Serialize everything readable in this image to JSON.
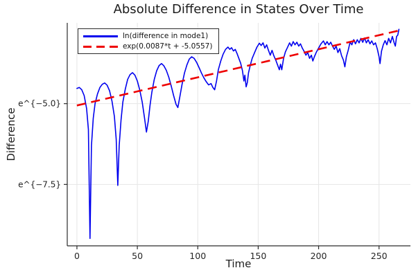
{
  "title": "Absolute Difference in States Over Time",
  "xlabel": "Time",
  "ylabel": "Difference",
  "legend": [
    {
      "label": "ln(difference in mode1)",
      "color": "#0000ee",
      "style": "solid"
    },
    {
      "label": "exp(0.0087*t + -5.0557)",
      "color": "#ee0000",
      "style": "dashed"
    }
  ],
  "colors": {
    "series_blue": "#0000ee",
    "series_red": "#ee0000",
    "grid": "#e6e6e6",
    "axis": "#2b2b2b",
    "tick_text": "#252525",
    "background": "#ffffff"
  },
  "axes": {
    "xlim": [
      -8,
      276
    ],
    "ylim_ln": [
      -9.4,
      -2.5
    ],
    "xticks": [
      0,
      50,
      100,
      150,
      200,
      250
    ],
    "yticks": [
      {
        "value": -5.0,
        "label": "e^{−5.0}"
      },
      {
        "value": -7.5,
        "label": "e^{−7.5}"
      }
    ],
    "grid": true,
    "frame": "left-bottom spines only"
  },
  "chart_data": {
    "type": "line",
    "title": "Absolute Difference in States Over Time",
    "xlabel": "Time",
    "ylabel": "Difference",
    "y_units": "natural-log scale; tick labels rendered as e^{value}",
    "xlim": [
      -8,
      276
    ],
    "ylim": [
      -9.4,
      -2.5
    ],
    "legend_position": "top-left",
    "series": [
      {
        "name": "ln(difference in mode1)",
        "color": "#0000ee",
        "style": "solid",
        "points": [
          [
            0,
            -4.53
          ],
          [
            2,
            -4.5
          ],
          [
            4,
            -4.57
          ],
          [
            6,
            -4.75
          ],
          [
            8,
            -5.15
          ],
          [
            9.5,
            -5.8
          ],
          [
            10.8,
            -9.17
          ],
          [
            12,
            -6.3
          ],
          [
            13.5,
            -5.45
          ],
          [
            15,
            -5.0
          ],
          [
            17,
            -4.7
          ],
          [
            19,
            -4.5
          ],
          [
            21,
            -4.4
          ],
          [
            23,
            -4.36
          ],
          [
            25,
            -4.43
          ],
          [
            27,
            -4.6
          ],
          [
            29,
            -4.92
          ],
          [
            31,
            -5.4
          ],
          [
            32.5,
            -6.1
          ],
          [
            33.8,
            -7.53
          ],
          [
            35,
            -6.3
          ],
          [
            36.5,
            -5.5
          ],
          [
            38,
            -4.95
          ],
          [
            40,
            -4.55
          ],
          [
            42,
            -4.25
          ],
          [
            44,
            -4.1
          ],
          [
            46,
            -4.04
          ],
          [
            48,
            -4.12
          ],
          [
            50,
            -4.3
          ],
          [
            52,
            -4.58
          ],
          [
            54,
            -4.95
          ],
          [
            56,
            -5.45
          ],
          [
            57.5,
            -5.88
          ],
          [
            59,
            -5.55
          ],
          [
            60.5,
            -5.05
          ],
          [
            62,
            -4.65
          ],
          [
            64,
            -4.25
          ],
          [
            66,
            -3.98
          ],
          [
            68,
            -3.82
          ],
          [
            70,
            -3.76
          ],
          [
            72,
            -3.83
          ],
          [
            74,
            -3.97
          ],
          [
            76,
            -4.18
          ],
          [
            78,
            -4.45
          ],
          [
            80,
            -4.75
          ],
          [
            82,
            -5.02
          ],
          [
            83.5,
            -5.12
          ],
          [
            85,
            -4.82
          ],
          [
            87,
            -4.4
          ],
          [
            89,
            -4.05
          ],
          [
            91,
            -3.8
          ],
          [
            93,
            -3.62
          ],
          [
            95,
            -3.55
          ],
          [
            97,
            -3.6
          ],
          [
            99,
            -3.72
          ],
          [
            101,
            -3.88
          ],
          [
            103,
            -4.05
          ],
          [
            105,
            -4.2
          ],
          [
            107,
            -4.32
          ],
          [
            109,
            -4.42
          ],
          [
            111,
            -4.38
          ],
          [
            112.5,
            -4.5
          ],
          [
            114,
            -4.57
          ],
          [
            115.5,
            -4.3
          ],
          [
            117,
            -3.95
          ],
          [
            119,
            -3.68
          ],
          [
            121,
            -3.47
          ],
          [
            123,
            -3.32
          ],
          [
            125,
            -3.25
          ],
          [
            126.5,
            -3.32
          ],
          [
            128,
            -3.27
          ],
          [
            129.5,
            -3.37
          ],
          [
            131,
            -3.32
          ],
          [
            132.5,
            -3.45
          ],
          [
            134,
            -3.6
          ],
          [
            135.5,
            -3.75
          ],
          [
            137,
            -3.98
          ],
          [
            138.2,
            -4.3
          ],
          [
            139,
            -4.12
          ],
          [
            140,
            -4.48
          ],
          [
            141,
            -4.35
          ],
          [
            142,
            -4.05
          ],
          [
            143.5,
            -3.8
          ],
          [
            145,
            -3.6
          ],
          [
            147,
            -3.42
          ],
          [
            149,
            -3.25
          ],
          [
            151,
            -3.13
          ],
          [
            152.5,
            -3.2
          ],
          [
            154,
            -3.12
          ],
          [
            155.5,
            -3.28
          ],
          [
            157,
            -3.18
          ],
          [
            158.5,
            -3.35
          ],
          [
            160,
            -3.5
          ],
          [
            161.5,
            -3.35
          ],
          [
            163,
            -3.52
          ],
          [
            164.5,
            -3.65
          ],
          [
            166,
            -3.8
          ],
          [
            167.5,
            -3.95
          ],
          [
            168.5,
            -3.78
          ],
          [
            169.5,
            -3.95
          ],
          [
            171,
            -3.6
          ],
          [
            172.5,
            -3.4
          ],
          [
            174,
            -3.28
          ],
          [
            176,
            -3.12
          ],
          [
            177.5,
            -3.22
          ],
          [
            179,
            -3.08
          ],
          [
            180.5,
            -3.18
          ],
          [
            182,
            -3.1
          ],
          [
            183.5,
            -3.22
          ],
          [
            185,
            -3.15
          ],
          [
            186.5,
            -3.28
          ],
          [
            188,
            -3.38
          ],
          [
            189.5,
            -3.5
          ],
          [
            191,
            -3.42
          ],
          [
            192.5,
            -3.6
          ],
          [
            194,
            -3.5
          ],
          [
            195.2,
            -3.68
          ],
          [
            196.5,
            -3.55
          ],
          [
            198,
            -3.42
          ],
          [
            200,
            -3.28
          ],
          [
            202,
            -3.15
          ],
          [
            204,
            -3.06
          ],
          [
            205.5,
            -3.18
          ],
          [
            207,
            -3.08
          ],
          [
            208.5,
            -3.18
          ],
          [
            210,
            -3.1
          ],
          [
            211.5,
            -3.22
          ],
          [
            213,
            -3.32
          ],
          [
            214.5,
            -3.22
          ],
          [
            216,
            -3.42
          ],
          [
            217.5,
            -3.3
          ],
          [
            219,
            -3.52
          ],
          [
            220.5,
            -3.65
          ],
          [
            221.7,
            -3.86
          ],
          [
            223,
            -3.55
          ],
          [
            224.5,
            -3.35
          ],
          [
            226,
            -3.1
          ],
          [
            227.5,
            -3.18
          ],
          [
            229,
            -3.02
          ],
          [
            230.5,
            -3.15
          ],
          [
            232,
            -3.02
          ],
          [
            233.5,
            -3.12
          ],
          [
            235,
            -2.98
          ],
          [
            236.5,
            -3.1
          ],
          [
            238,
            -2.97
          ],
          [
            239.5,
            -3.12
          ],
          [
            241,
            -3.02
          ],
          [
            242.5,
            -3.15
          ],
          [
            244,
            -3.06
          ],
          [
            245.5,
            -3.18
          ],
          [
            247,
            -3.12
          ],
          [
            248.5,
            -3.3
          ],
          [
            250,
            -3.55
          ],
          [
            250.8,
            -3.76
          ],
          [
            252,
            -3.38
          ],
          [
            253.5,
            -3.18
          ],
          [
            255,
            -3.05
          ],
          [
            256.5,
            -3.18
          ],
          [
            258,
            -2.98
          ],
          [
            259.5,
            -3.12
          ],
          [
            261,
            -2.92
          ],
          [
            262.5,
            -3.12
          ],
          [
            263.5,
            -3.22
          ],
          [
            264.5,
            -2.92
          ],
          [
            265.5,
            -2.88
          ],
          [
            266.5,
            -2.7
          ]
        ]
      },
      {
        "name": "exp(0.0087*t + -5.0557)",
        "color": "#ee0000",
        "style": "dashed",
        "model": "ln(y) = 0.0087*t - 5.0557",
        "slope": 0.0087,
        "intercept": -5.0557,
        "points": [
          [
            0,
            -5.0557
          ],
          [
            267,
            -2.7328
          ]
        ]
      }
    ]
  }
}
